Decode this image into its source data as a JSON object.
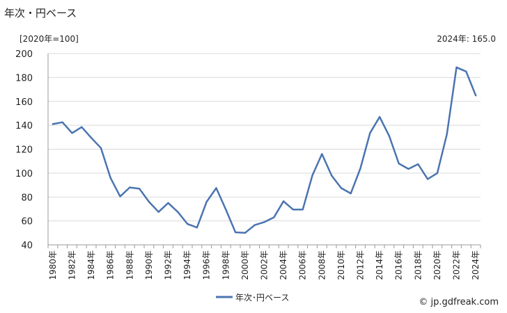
{
  "header": {
    "title": "年次・円ベース",
    "unit_label": "[2020年=100]",
    "latest_label": "2024年: 165.0"
  },
  "footer": {
    "credit": "© jp.gdfreak.com"
  },
  "chart_data": {
    "type": "line",
    "title": "",
    "xlabel": "",
    "ylabel": "",
    "ylim": [
      40,
      200
    ],
    "yticks": [
      40,
      60,
      80,
      100,
      120,
      140,
      160,
      180,
      200
    ],
    "grid": true,
    "legend": "bottom-center",
    "color": "#4a74b0",
    "x": [
      "1980年",
      "1981年",
      "1982年",
      "1983年",
      "1984年",
      "1985年",
      "1986年",
      "1987年",
      "1988年",
      "1989年",
      "1990年",
      "1991年",
      "1992年",
      "1993年",
      "1994年",
      "1995年",
      "1996年",
      "1997年",
      "1998年",
      "1999年",
      "2000年",
      "2001年",
      "2002年",
      "2003年",
      "2004年",
      "2005年",
      "2006年",
      "2007年",
      "2008年",
      "2009年",
      "2010年",
      "2011年",
      "2012年",
      "2013年",
      "2014年",
      "2015年",
      "2016年",
      "2017年",
      "2018年",
      "2019年",
      "2020年",
      "2021年",
      "2022年",
      "2023年",
      "2024年"
    ],
    "xtick_labels": [
      "1980年",
      "1982年",
      "1984年",
      "1986年",
      "1988年",
      "1990年",
      "1992年",
      "1994年",
      "1996年",
      "1998年",
      "2000年",
      "2002年",
      "2004年",
      "2006年",
      "2008年",
      "2010年",
      "2012年",
      "2014年",
      "2016年",
      "2018年",
      "2020年",
      "2022年",
      "2024年"
    ],
    "series": [
      {
        "name": "年次･円ベース",
        "values": [
          141,
          142.5,
          133.5,
          138.5,
          129.5,
          121,
          96,
          80.5,
          88,
          87,
          76,
          67.5,
          75,
          67.5,
          57.5,
          54.5,
          76,
          87.5,
          69.5,
          50.5,
          50,
          56.5,
          59,
          63,
          76.5,
          69.5,
          69.5,
          98,
          116,
          98,
          87.5,
          83,
          104,
          133.5,
          147,
          131,
          108,
          103.5,
          107.5,
          95,
          100,
          132.5,
          188.5,
          185,
          165
        ]
      }
    ]
  }
}
